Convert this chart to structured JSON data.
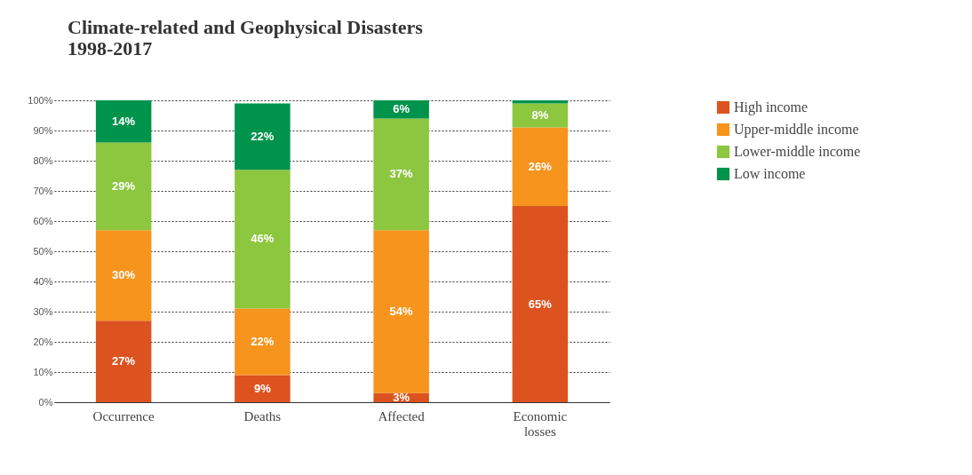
{
  "chart_data": {
    "type": "bar",
    "title": "Climate-related and Geophysical Disasters",
    "subtitle": "1998-2017",
    "stacked": true,
    "categories": [
      "Occurrence",
      "Deaths",
      "Affected",
      "Economic losses"
    ],
    "series": [
      {
        "name": "High income",
        "color": "#dc531f",
        "values": [
          27,
          9,
          3,
          65
        ],
        "value_labels": [
          "27%",
          "9%",
          "3%",
          "65%"
        ]
      },
      {
        "name": "Upper-middle income",
        "color": "#f7941e",
        "values": [
          30,
          22,
          54,
          26
        ],
        "value_labels": [
          "30%",
          "22%",
          "54%",
          "26%"
        ]
      },
      {
        "name": "Lower-middle income",
        "color": "#8dc63f",
        "values": [
          29,
          46,
          37,
          8
        ],
        "value_labels": [
          "29%",
          "46%",
          "37%",
          "8%"
        ]
      },
      {
        "name": "Low income",
        "color": "#00934b",
        "values": [
          14,
          22,
          6,
          1
        ],
        "value_labels": [
          "14%",
          "22%",
          "6%",
          null
        ]
      }
    ],
    "ylim": [
      0,
      100
    ],
    "yticks": [
      {
        "value": 0,
        "label": "0%"
      },
      {
        "value": 10,
        "label": "10%"
      },
      {
        "value": 20,
        "label": "20%"
      },
      {
        "value": 30,
        "label": "30%"
      },
      {
        "value": 40,
        "label": "40%"
      },
      {
        "value": 50,
        "label": "50%"
      },
      {
        "value": 60,
        "label": "60%"
      },
      {
        "value": 70,
        "label": "70%"
      },
      {
        "value": 80,
        "label": "80%"
      },
      {
        "value": 90,
        "label": "90%"
      },
      {
        "value": 100,
        "label": "100%"
      }
    ],
    "grid": "y",
    "legend": "right"
  }
}
